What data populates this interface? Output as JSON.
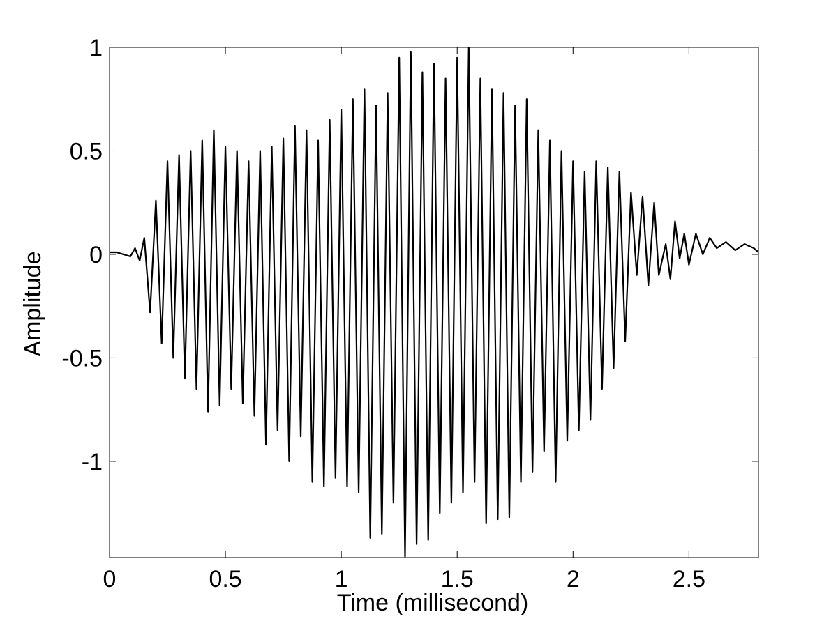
{
  "chart_data": {
    "type": "line",
    "xlabel": "Time (millisecond)",
    "ylabel": "Amplitude",
    "color": "#000000",
    "grid": false,
    "xlim": [
      0,
      2.8
    ],
    "ylim": [
      -1.465,
      1
    ],
    "xticks": [
      0,
      0.5,
      1,
      1.5,
      2,
      2.5
    ],
    "yticks": [
      -1,
      -0.5,
      0,
      0.5,
      1
    ],
    "x": [
      0,
      0.03,
      0.06,
      0.09,
      0.11,
      0.13,
      0.15,
      0.175,
      0.2,
      0.225,
      0.25,
      0.275,
      0.3,
      0.325,
      0.35,
      0.375,
      0.4,
      0.425,
      0.45,
      0.475,
      0.5,
      0.525,
      0.55,
      0.575,
      0.6,
      0.625,
      0.65,
      0.675,
      0.7,
      0.725,
      0.75,
      0.775,
      0.8,
      0.825,
      0.85,
      0.875,
      0.9,
      0.925,
      0.95,
      0.975,
      1.0,
      1.025,
      1.05,
      1.075,
      1.1,
      1.125,
      1.15,
      1.175,
      1.2,
      1.225,
      1.25,
      1.275,
      1.3,
      1.325,
      1.35,
      1.375,
      1.4,
      1.425,
      1.45,
      1.475,
      1.5,
      1.525,
      1.55,
      1.575,
      1.6,
      1.625,
      1.65,
      1.675,
      1.7,
      1.725,
      1.75,
      1.775,
      1.8,
      1.825,
      1.85,
      1.875,
      1.9,
      1.925,
      1.95,
      1.975,
      2.0,
      2.025,
      2.05,
      2.075,
      2.1,
      2.125,
      2.15,
      2.175,
      2.2,
      2.225,
      2.25,
      2.275,
      2.3,
      2.325,
      2.35,
      2.37,
      2.4,
      2.42,
      2.44,
      2.46,
      2.48,
      2.5,
      2.53,
      2.56,
      2.59,
      2.62,
      2.66,
      2.7,
      2.74,
      2.78,
      2.8
    ],
    "values": [
      0.01,
      0.01,
      0.0,
      -0.01,
      0.03,
      -0.03,
      0.08,
      -0.28,
      0.26,
      -0.43,
      0.45,
      -0.5,
      0.48,
      -0.6,
      0.5,
      -0.65,
      0.55,
      -0.76,
      0.6,
      -0.73,
      0.52,
      -0.65,
      0.5,
      -0.72,
      0.45,
      -0.78,
      0.5,
      -0.92,
      0.52,
      -0.85,
      0.56,
      -1.0,
      0.62,
      -0.88,
      0.6,
      -1.1,
      0.55,
      -1.12,
      0.65,
      -1.08,
      0.7,
      -1.12,
      0.75,
      -1.15,
      0.8,
      -1.37,
      0.72,
      -1.35,
      0.78,
      -1.2,
      0.95,
      -1.46,
      0.98,
      -1.4,
      0.88,
      -1.38,
      0.92,
      -1.25,
      0.85,
      -1.2,
      0.95,
      -1.15,
      1.0,
      -1.1,
      0.85,
      -1.3,
      0.8,
      -1.28,
      0.78,
      -1.27,
      0.72,
      -1.1,
      0.75,
      -1.05,
      0.6,
      -0.95,
      0.55,
      -1.1,
      0.5,
      -0.9,
      0.45,
      -0.85,
      0.4,
      -0.8,
      0.45,
      -0.65,
      0.42,
      -0.55,
      0.4,
      -0.42,
      0.3,
      -0.1,
      0.28,
      -0.15,
      0.25,
      -0.1,
      0.05,
      -0.12,
      0.16,
      -0.02,
      0.1,
      -0.05,
      0.1,
      0.0,
      0.08,
      0.03,
      0.06,
      0.02,
      0.05,
      0.03,
      0.01
    ]
  }
}
